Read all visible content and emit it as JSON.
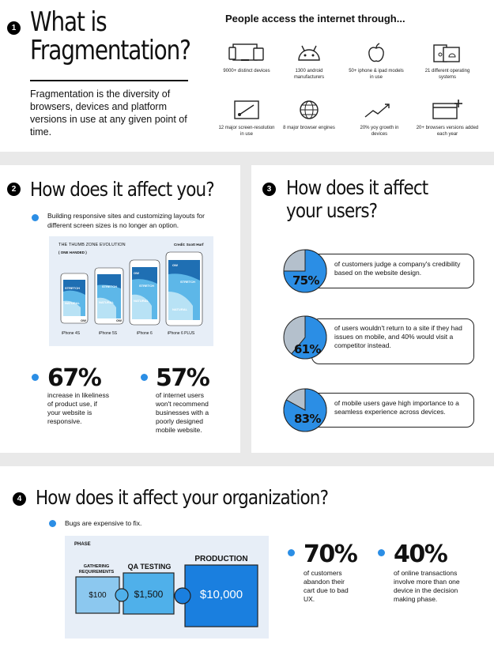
{
  "colors": {
    "accent": "#2b8ee5",
    "dark_accent": "#1a6fd1",
    "panel_bg": "#ffffff",
    "page_bg": "#e9e9e9",
    "light_box": "#e7eef7"
  },
  "section1": {
    "number": "1",
    "title_line1": "What is",
    "title_line2": "Fragmentation?",
    "definition": "Fragmentation is the diversity of browsers, devices and platform versions in use at any given point of time.",
    "access_heading": "People access the internet through...",
    "stats": [
      {
        "icon": "devices-icon",
        "label": "9000+ distinct devices"
      },
      {
        "icon": "android-icon",
        "label": "1300 android manufacturers"
      },
      {
        "icon": "apple-icon",
        "label": "50+ iphone & ipad models in use"
      },
      {
        "icon": "os-icon",
        "label": "21 different operating systems"
      },
      {
        "icon": "screen-resolution-icon",
        "label": "12 major screen-resolution in use"
      },
      {
        "icon": "globe-icon",
        "label": "8 major browser engines"
      },
      {
        "icon": "growth-icon",
        "label": "20% yoy growth in devices"
      },
      {
        "icon": "browser-add-icon",
        "label": "20+ browsers versions added each year"
      }
    ]
  },
  "section2": {
    "number": "2",
    "title": "How does it affect you?",
    "bullet": "Building responsive sites and customizing layouts for different screen sizes is no longer an option.",
    "thumb": {
      "title": "THE THUMB ZONE EVOLUTION",
      "subtitle": "( ONE HANDED )",
      "credit": "Credit: Scott Hurf",
      "zones": {
        "ow": "OW",
        "stretch": "STRETCH",
        "natural": "NATURAL"
      },
      "phones": [
        "iPhone 4S",
        "iPhone 5S",
        "iPhone 6",
        "iPhone 6 PLUS"
      ]
    },
    "stat1": {
      "value": "67%",
      "text": "increase in likeliness of product use, if your website is responsive."
    },
    "stat2": {
      "value": "57%",
      "text": "of internet users won't recommend businesses with a poorly designed mobile website."
    }
  },
  "section3": {
    "number": "3",
    "title_line1": "How does it affect",
    "title_line2": "your users?",
    "items": [
      {
        "value": "75%",
        "fraction": 0.75,
        "text": "of customers judge a company's credibility based on the website design."
      },
      {
        "value": "61%",
        "fraction": 0.61,
        "text": "of users wouldn't return to a site if they had issues on mobile, and 40% would visit a competitor instead."
      },
      {
        "value": "83%",
        "fraction": 0.83,
        "text": "of mobile users gave high importance to a seamless experience across devices."
      }
    ]
  },
  "section4": {
    "number": "4",
    "title": "How does it affect your organization?",
    "bullet": "Bugs are expensive to fix.",
    "phase_label": "PHASE",
    "phases": [
      {
        "name": "GATHERING REQUIREMENTS",
        "cost": "$100"
      },
      {
        "name": "QA TESTING",
        "cost": "$1,500"
      },
      {
        "name": "PRODUCTION",
        "cost": "$10,000"
      }
    ],
    "stat1": {
      "value": "70%",
      "text": "of customers abandon their cart due to bad UX."
    },
    "stat2": {
      "value": "40%",
      "text": "of online transactions involve more than one device in the decision making phase."
    }
  }
}
